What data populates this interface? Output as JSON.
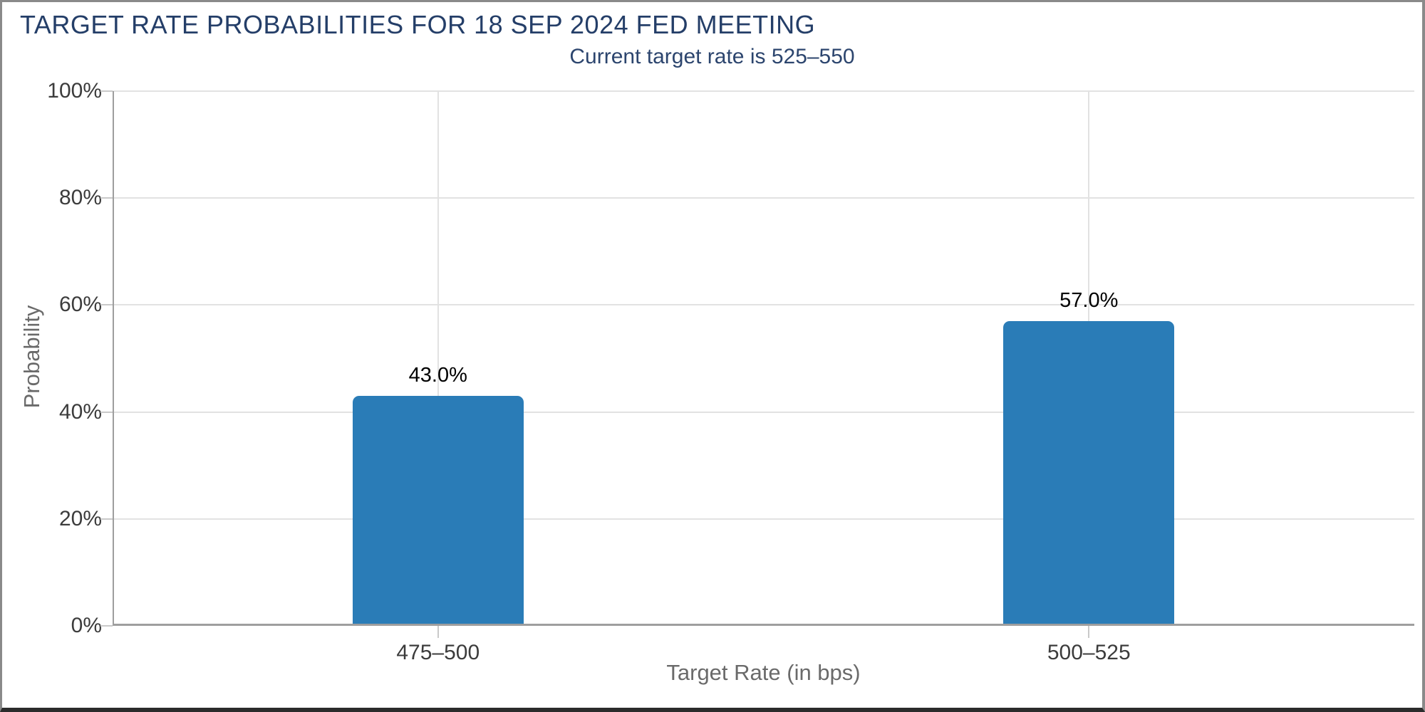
{
  "chart": {
    "title": "TARGET RATE PROBABILITIES FOR 18 SEP 2024 FED MEETING",
    "subtitle": "Current target rate is 525–550"
  },
  "chart_data": {
    "type": "bar",
    "title": "TARGET RATE PROBABILITIES FOR 18 SEP 2024 FED MEETING",
    "subtitle": "Current target rate is 525–550",
    "categories": [
      "475–500",
      "500–525"
    ],
    "values": [
      43.0,
      57.0
    ],
    "value_labels": [
      "43.0%",
      "57.0%"
    ],
    "xlabel": "Target Rate (in bps)",
    "ylabel": "Probability",
    "ylim": [
      0,
      100
    ],
    "yticks": [
      0,
      20,
      40,
      60,
      80,
      100
    ],
    "ytick_labels": [
      "0%",
      "20%",
      "40%",
      "60%",
      "80%",
      "100%"
    ],
    "grid": true,
    "legend_position": "none",
    "bar_color": "#2a7cb7"
  },
  "colors": {
    "title_text": "#243e68",
    "subtitle_text": "#2c456e",
    "bar_fill": "#2a7cb7",
    "axis_line": "#9e9e9e",
    "gridline": "#e2e2e2",
    "tick_label_text": "#3c3c3c",
    "axis_title_text": "#6a6a6a",
    "value_label_text": "#000000"
  }
}
